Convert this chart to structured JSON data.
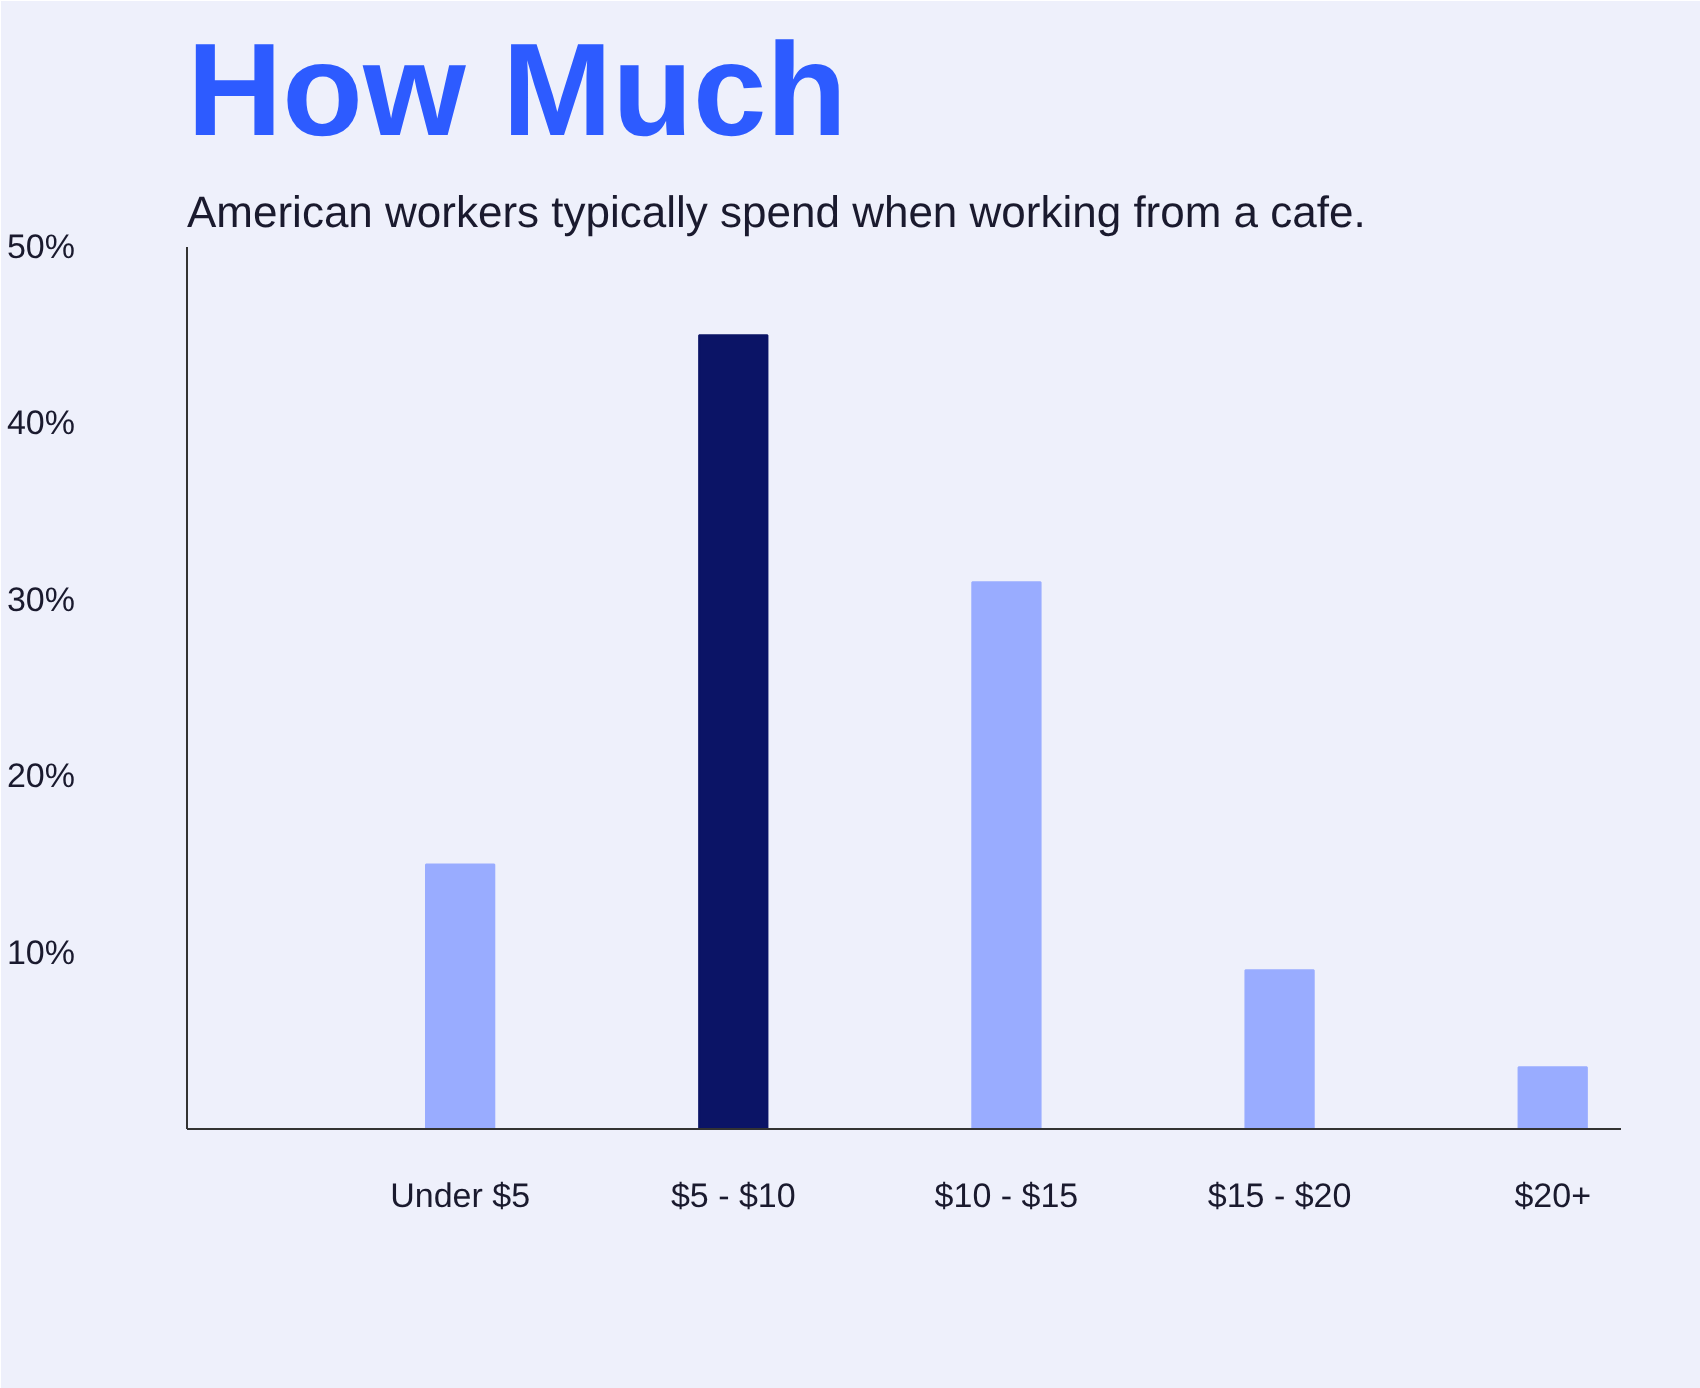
{
  "chart_data": {
    "type": "bar",
    "title": "How Much",
    "subtitle": "American workers typically spend when working from a cafe.",
    "categories": [
      "Under $5",
      "$5 - $10",
      "$10 - $15",
      "$15 - $20",
      "$20+"
    ],
    "values": [
      15,
      45,
      31,
      9,
      3.5
    ],
    "colors": [
      "#99acff",
      "#0b1466",
      "#99acff",
      "#99acff",
      "#99acff"
    ],
    "ylim": [
      0,
      50
    ],
    "yticks": [
      {
        "value": 0,
        "label": null
      },
      {
        "value": 10,
        "label": "10%"
      },
      {
        "value": 20,
        "label": "20%"
      },
      {
        "value": 30,
        "label": "30%"
      },
      {
        "value": 40,
        "label": "40%"
      },
      {
        "value": 50,
        "label": "50%"
      }
    ],
    "grid": false
  }
}
